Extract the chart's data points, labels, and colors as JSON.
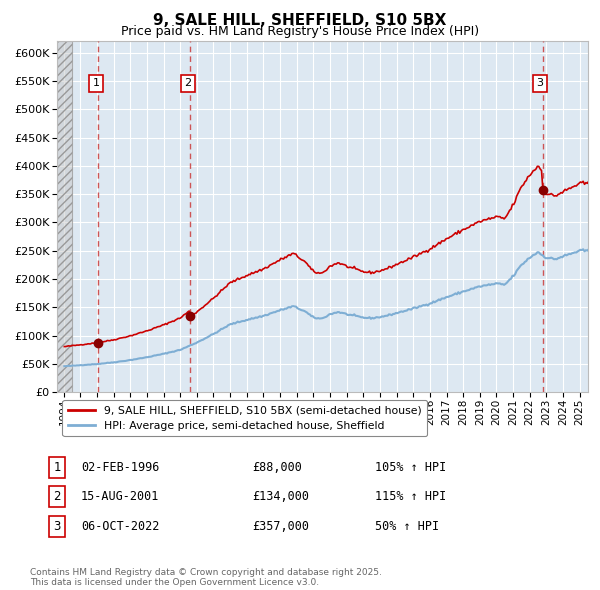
{
  "title": "9, SALE HILL, SHEFFIELD, S10 5BX",
  "subtitle": "Price paid vs. HM Land Registry's House Price Index (HPI)",
  "legend_line1": "9, SALE HILL, SHEFFIELD, S10 5BX (semi-detached house)",
  "legend_line2": "HPI: Average price, semi-detached house, Sheffield",
  "transactions": [
    {
      "num": 1,
      "date": "02-FEB-1996",
      "price": 88000,
      "hpi_pct": "105% ↑ HPI",
      "x": 1996.09
    },
    {
      "num": 2,
      "date": "15-AUG-2001",
      "price": 134000,
      "hpi_pct": "115% ↑ HPI",
      "x": 2001.62
    },
    {
      "num": 3,
      "date": "06-OCT-2022",
      "price": 357000,
      "hpi_pct": "50% ↑ HPI",
      "x": 2022.77
    }
  ],
  "property_color": "#cc0000",
  "hpi_color": "#7eaed4",
  "background_plot": "#dde8f2",
  "grid_color": "#ffffff",
  "ylim": [
    0,
    620000
  ],
  "xlim_start": 1993.6,
  "xlim_end": 2025.5,
  "footer": "Contains HM Land Registry data © Crown copyright and database right 2025.\nThis data is licensed under the Open Government Licence v3.0."
}
